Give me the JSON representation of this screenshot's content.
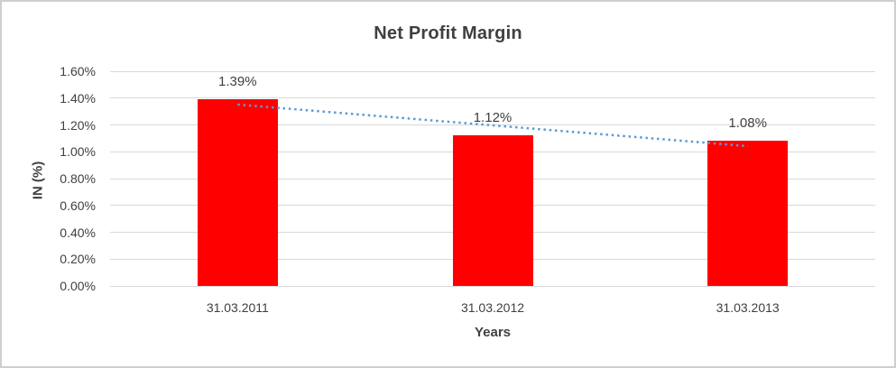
{
  "window": {
    "background": "#ffffff",
    "border_color": "#d0cece"
  },
  "chart_data": {
    "type": "bar",
    "title": "Net Profit Margin",
    "categories": [
      "31.03.2011",
      "31.03.2012",
      "31.03.2013"
    ],
    "values": [
      1.39,
      1.12,
      1.08
    ],
    "data_labels": [
      "1.39%",
      "1.12%",
      "1.08%"
    ],
    "xlabel": "Years",
    "ylabel": "IN (%)",
    "ylim": [
      0,
      1.6
    ],
    "ytick_step": 0.2,
    "ytick_labels": [
      "0.00%",
      "0.20%",
      "0.40%",
      "0.60%",
      "0.80%",
      "1.00%",
      "1.20%",
      "1.40%",
      "1.60%"
    ],
    "grid": true,
    "legend": false,
    "colors": {
      "bar": "#ff0000",
      "trendline": "#5b9bd5",
      "gridline": "#d9d9d9",
      "title_text": "#3f3f3f",
      "axis_text": "#404040"
    },
    "trendline": {
      "type": "linear",
      "style": "dotted"
    }
  }
}
